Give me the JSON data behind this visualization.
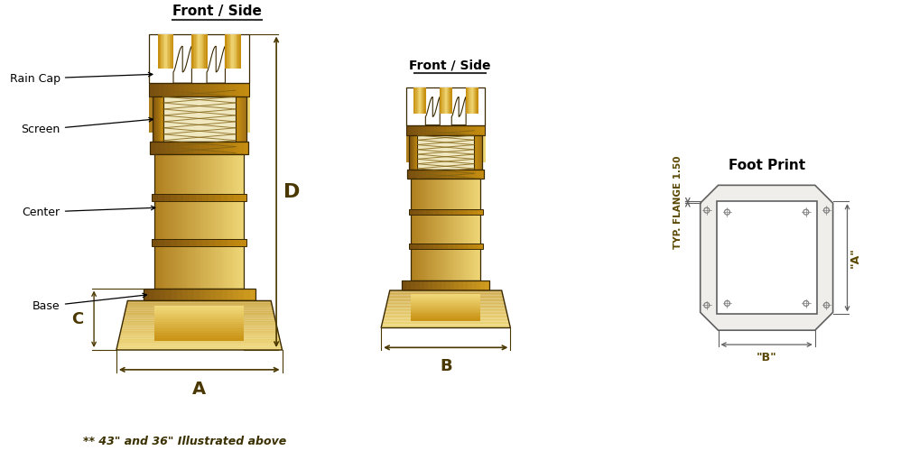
{
  "bg_color": "#ffffff",
  "gold_light": "#E8C040",
  "gold_mid": "#C89010",
  "gold_dark": "#A07018",
  "gold_darker": "#7a5010",
  "gold_highlight": "#F0D878",
  "gold_shadow": "#B08020",
  "gold_base": "#D4A020",
  "screen_bg": "#E8D890",
  "mesh_color": "#806010",
  "line_color": "#3a2800",
  "dim_color": "#4a3800",
  "footnote": "** 43\" and 36\" Illustrated above",
  "labels": {
    "front_side_1": "Front / Side",
    "front_side_2": "Front / Side",
    "foot_print": "Foot Print",
    "rain_cap": "Rain Cap",
    "screen": "Screen",
    "center": "Center",
    "base": "Base",
    "dim_A": "A",
    "dim_B": "B",
    "dim_C": "C",
    "dim_D": "D",
    "typ_flange": "TYP. FLANGE 1.50",
    "dim_A_fp": "\"A\"",
    "dim_B_fp": "\"B\""
  }
}
